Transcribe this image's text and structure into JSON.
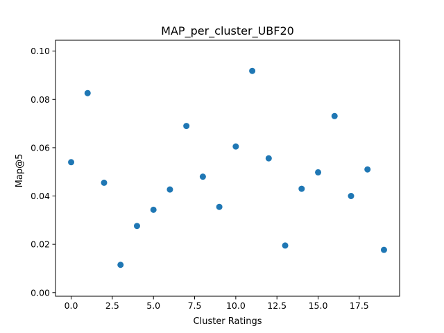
{
  "chart_data": {
    "type": "scatter",
    "title": "MAP_per_cluster_UBF20",
    "xlabel": "Cluster Ratings",
    "ylabel": "Map@5",
    "xlim": [
      -0.95,
      19.95
    ],
    "ylim": [
      -0.0015,
      0.1045
    ],
    "xticks": [
      0,
      2.5,
      5,
      7.5,
      10,
      12.5,
      15,
      17.5
    ],
    "xtick_labels": [
      "0.0",
      "2.5",
      "5.0",
      "7.5",
      "10.0",
      "12.5",
      "15.0",
      "17.5"
    ],
    "yticks": [
      0,
      0.02,
      0.04,
      0.06,
      0.08,
      0.1
    ],
    "ytick_labels": [
      "0.00",
      "0.02",
      "0.04",
      "0.06",
      "0.08",
      "0.10"
    ],
    "grid": false,
    "marker_color": "#1f77b4",
    "x": [
      0,
      1,
      2,
      3,
      4,
      5,
      6,
      7,
      8,
      9,
      10,
      11,
      12,
      13,
      14,
      15,
      16,
      17,
      18,
      19
    ],
    "y": [
      0.054,
      0.0826,
      0.0455,
      0.0115,
      0.0276,
      0.0343,
      0.0427,
      0.069,
      0.048,
      0.0355,
      0.0605,
      0.0918,
      0.0556,
      0.0195,
      0.043,
      0.0498,
      0.0731,
      0.04,
      0.051,
      0.0177
    ]
  }
}
